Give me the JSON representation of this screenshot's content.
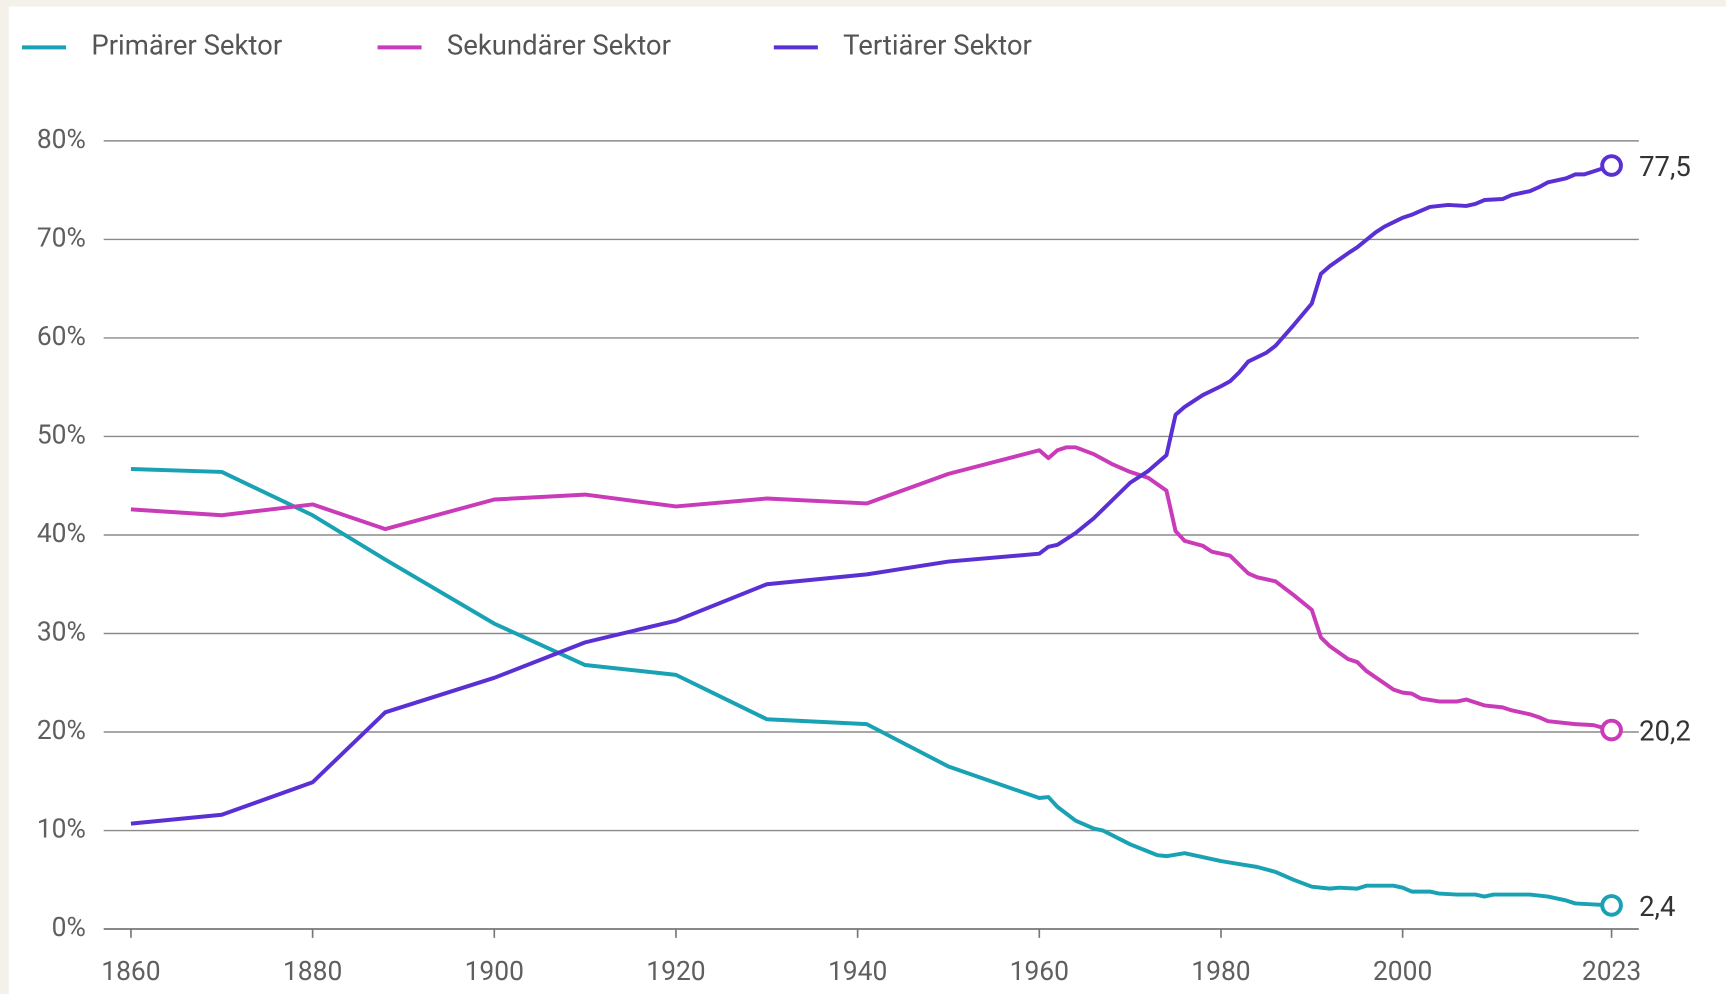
{
  "chart_data": {
    "type": "line",
    "xlim": [
      1857,
      2026
    ],
    "ylim": [
      0,
      80
    ],
    "xticks": [
      1860,
      1880,
      1900,
      1920,
      1940,
      1960,
      1980,
      2000,
      2023
    ],
    "yticks": [
      {
        "value": 0,
        "label": "0%"
      },
      {
        "value": 10,
        "label": "10%"
      },
      {
        "value": 20,
        "label": "20%"
      },
      {
        "value": 30,
        "label": "30%"
      },
      {
        "value": 40,
        "label": "40%"
      },
      {
        "value": 50,
        "label": "50%"
      },
      {
        "value": 60,
        "label": "60%"
      },
      {
        "value": 70,
        "label": "70%"
      },
      {
        "value": 80,
        "label": "80%"
      }
    ],
    "grid": true,
    "series": [
      {
        "name": "Primärer Sektor",
        "color": "#19a2b4",
        "end_label": "2,4",
        "x": [
          1860,
          1870,
          1880,
          1888,
          1900,
          1910,
          1920,
          1930,
          1941,
          1950,
          1960,
          1961,
          1962,
          1964,
          1966,
          1967,
          1970,
          1973,
          1974,
          1976,
          1980,
          1982,
          1984,
          1986,
          1988,
          1990,
          1992,
          1993,
          1995,
          1996,
          1999,
          2000,
          2001,
          2003,
          2004,
          2006,
          2008,
          2009,
          2010,
          2014,
          2016,
          2018,
          2019,
          2021,
          2023
        ],
        "values": [
          46.7,
          46.4,
          42,
          37.5,
          31,
          26.8,
          25.8,
          21.3,
          20.8,
          16.5,
          13.3,
          13.4,
          12.4,
          11,
          10.2,
          10,
          8.6,
          7.5,
          7.4,
          7.7,
          6.9,
          6.6,
          6.3,
          5.8,
          5,
          4.3,
          4.1,
          4.2,
          4.1,
          4.4,
          4.4,
          4.2,
          3.8,
          3.8,
          3.6,
          3.5,
          3.5,
          3.3,
          3.5,
          3.5,
          3.3,
          2.9,
          2.6,
          2.5,
          2.4
        ]
      },
      {
        "name": "Sekundärer Sektor",
        "color": "#c93bb8",
        "end_label": "20,2",
        "x": [
          1860,
          1870,
          1880,
          1888,
          1900,
          1910,
          1920,
          1930,
          1941,
          1950,
          1960,
          1961,
          1962,
          1963,
          1964,
          1966,
          1968,
          1970,
          1972,
          1974,
          1975,
          1976,
          1978,
          1979,
          1981,
          1983,
          1984,
          1986,
          1988,
          1990,
          1991,
          1992,
          1994,
          1995,
          1996,
          1999,
          2000,
          2001,
          2002,
          2004,
          2006,
          2007,
          2009,
          2011,
          2012,
          2014,
          2015,
          2016,
          2019,
          2021,
          2023
        ],
        "values": [
          42.6,
          42,
          43.1,
          40.6,
          43.6,
          44.1,
          42.9,
          43.7,
          43.2,
          46.2,
          48.6,
          47.8,
          48.6,
          48.9,
          48.9,
          48.2,
          47.2,
          46.4,
          45.8,
          44.5,
          40.4,
          39.4,
          38.9,
          38.3,
          37.9,
          36.1,
          35.7,
          35.3,
          33.9,
          32.4,
          29.6,
          28.7,
          27.4,
          27.1,
          26.2,
          24.3,
          24,
          23.9,
          23.4,
          23.1,
          23.1,
          23.3,
          22.7,
          22.5,
          22.2,
          21.8,
          21.5,
          21.1,
          20.8,
          20.7,
          20.2
        ]
      },
      {
        "name": "Tertiärer Sektor",
        "color": "#5a2fd4",
        "end_label": "77,5",
        "x": [
          1860,
          1870,
          1880,
          1888,
          1900,
          1910,
          1920,
          1930,
          1941,
          1950,
          1960,
          1961,
          1962,
          1964,
          1966,
          1968,
          1970,
          1972,
          1974,
          1975,
          1976,
          1978,
          1980,
          1981,
          1982,
          1983,
          1985,
          1986,
          1988,
          1990,
          1991,
          1992,
          1994,
          1995,
          1997,
          1998,
          2000,
          2001,
          2002,
          2003,
          2005,
          2007,
          2008,
          2009,
          2011,
          2012,
          2013,
          2014,
          2015,
          2016,
          2018,
          2019,
          2020,
          2022,
          2023
        ],
        "values": [
          10.7,
          11.6,
          14.9,
          22,
          25.5,
          29.1,
          31.3,
          35,
          36,
          37.3,
          38.1,
          38.8,
          39,
          40.2,
          41.7,
          43.5,
          45.3,
          46.5,
          48.1,
          52.2,
          53,
          54.2,
          55.1,
          55.6,
          56.5,
          57.6,
          58.5,
          59.2,
          61.3,
          63.5,
          66.5,
          67.3,
          68.6,
          69.2,
          70.7,
          71.3,
          72.2,
          72.5,
          72.9,
          73.3,
          73.5,
          73.4,
          73.6,
          74,
          74.1,
          74.5,
          74.7,
          74.9,
          75.3,
          75.8,
          76.2,
          76.6,
          76.6,
          77.2,
          77.5
        ]
      }
    ]
  }
}
